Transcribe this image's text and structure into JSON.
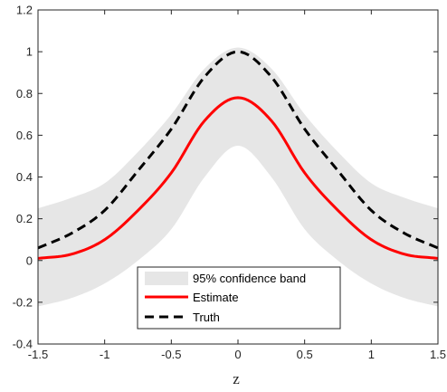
{
  "chart_data": {
    "type": "line",
    "xlabel": "z",
    "ylabel": "",
    "xlim": [
      -1.5,
      1.5
    ],
    "ylim": [
      -0.4,
      1.2
    ],
    "xticks": [
      -1.5,
      -1,
      -0.5,
      0,
      0.5,
      1,
      1.5
    ],
    "xtick_labels": [
      "-1.5",
      "-1",
      "-0.5",
      "0",
      "0.5",
      "1",
      "1.5"
    ],
    "yticks": [
      -0.4,
      -0.2,
      0,
      0.2,
      0.4,
      0.6,
      0.8,
      1,
      1.2
    ],
    "ytick_labels": [
      "-0.4",
      "-0.2",
      "0",
      "0.2",
      "0.4",
      "0.6",
      "0.8",
      "1",
      "1.2"
    ],
    "grid": false,
    "legend_position": "bottom-center",
    "band": {
      "name": "95% confidence band",
      "color": "#e6e6e6",
      "x": [
        -1.5,
        -1.25,
        -1.0,
        -0.75,
        -0.5,
        -0.25,
        0.0,
        0.25,
        0.5,
        0.75,
        1.0,
        1.25,
        1.5
      ],
      "lower": [
        -0.22,
        -0.18,
        -0.11,
        0.0,
        0.15,
        0.4,
        0.55,
        0.4,
        0.15,
        0.0,
        -0.11,
        -0.18,
        -0.22
      ],
      "upper": [
        0.25,
        0.3,
        0.37,
        0.52,
        0.7,
        0.92,
        1.02,
        0.92,
        0.7,
        0.52,
        0.37,
        0.3,
        0.25
      ]
    },
    "series": [
      {
        "name": "Estimate",
        "color": "#ff0000",
        "style": "solid",
        "x": [
          -1.5,
          -1.25,
          -1.0,
          -0.75,
          -0.5,
          -0.25,
          0.0,
          0.25,
          0.5,
          0.75,
          1.0,
          1.25,
          1.5
        ],
        "y": [
          0.01,
          0.03,
          0.1,
          0.24,
          0.42,
          0.67,
          0.78,
          0.67,
          0.42,
          0.24,
          0.1,
          0.03,
          0.01
        ]
      },
      {
        "name": "Truth",
        "color": "#000000",
        "style": "dashed",
        "x": [
          -1.5,
          -1.25,
          -1.0,
          -0.75,
          -0.5,
          -0.25,
          0.0,
          0.25,
          0.5,
          0.75,
          1.0,
          1.25,
          1.5
        ],
        "y": [
          0.06,
          0.13,
          0.24,
          0.43,
          0.63,
          0.88,
          1.0,
          0.88,
          0.63,
          0.43,
          0.24,
          0.13,
          0.06
        ]
      }
    ]
  }
}
